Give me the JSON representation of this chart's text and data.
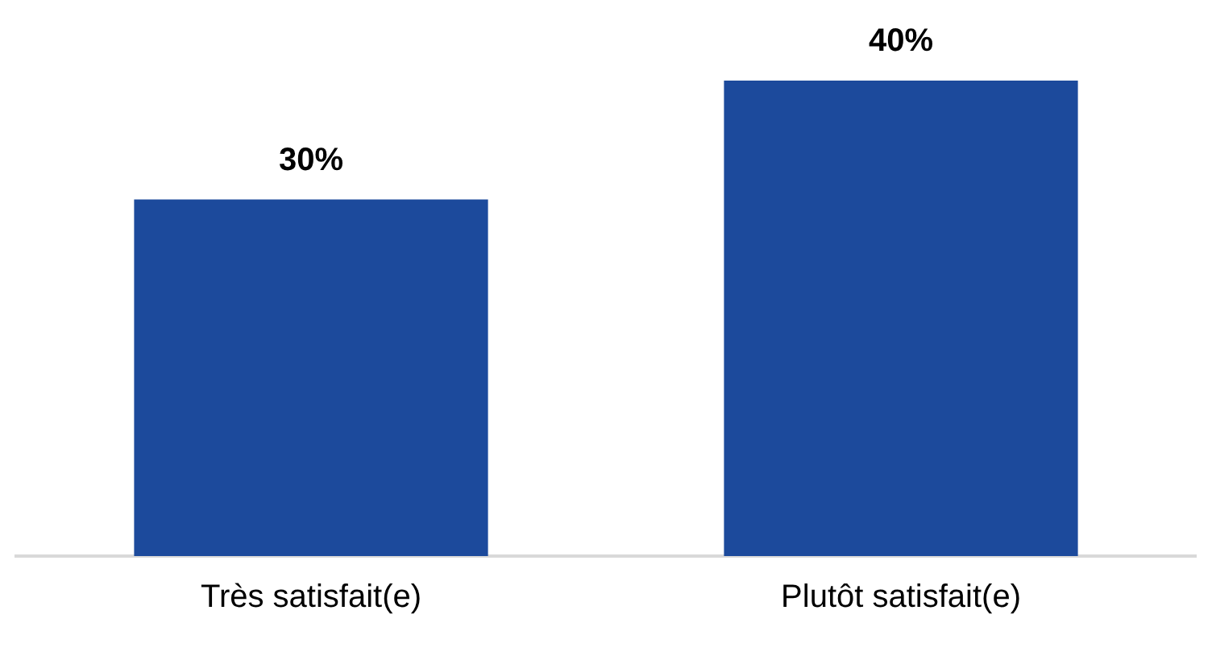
{
  "chart_data": {
    "type": "bar",
    "categories": [
      "Très satisfait(e)",
      "Plutôt satisfait(e)"
    ],
    "values": [
      30,
      40
    ],
    "value_labels": [
      "30%",
      "40%"
    ],
    "color": "#1c4a9c",
    "grid": false,
    "legend": false
  }
}
